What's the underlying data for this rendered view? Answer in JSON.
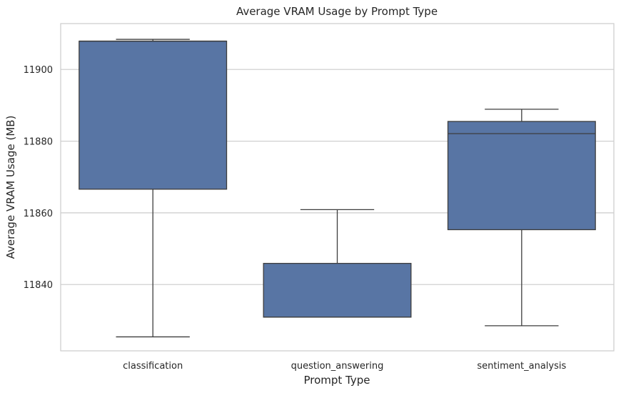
{
  "chart_data": {
    "type": "box",
    "title": "Average VRAM Usage by Prompt Type",
    "xlabel": "Prompt Type",
    "ylabel": "Average VRAM Usage (MB)",
    "categories": [
      "classification",
      "question_answering",
      "sentiment_analysis"
    ],
    "boxes": [
      {
        "category": "classification",
        "whisker_low": 11825.4,
        "q1": 11866.6,
        "median": 11907.9,
        "q3": 11907.9,
        "whisker_high": 11908.4
      },
      {
        "category": "question_answering",
        "whisker_low": 11830.9,
        "q1": 11830.9,
        "median": 11830.9,
        "q3": 11845.9,
        "whisker_high": 11860.9
      },
      {
        "category": "sentiment_analysis",
        "whisker_low": 11828.5,
        "q1": 11855.3,
        "median": 11882.1,
        "q3": 11885.5,
        "whisker_high": 11888.9
      }
    ],
    "ylim": [
      11821.5,
      11912.8
    ],
    "yticks": [
      11840,
      11860,
      11880,
      11900
    ],
    "grid": true,
    "box_color": "#5875a4",
    "line_color": "#3d3d3d",
    "grid_color": "#cccccc"
  }
}
